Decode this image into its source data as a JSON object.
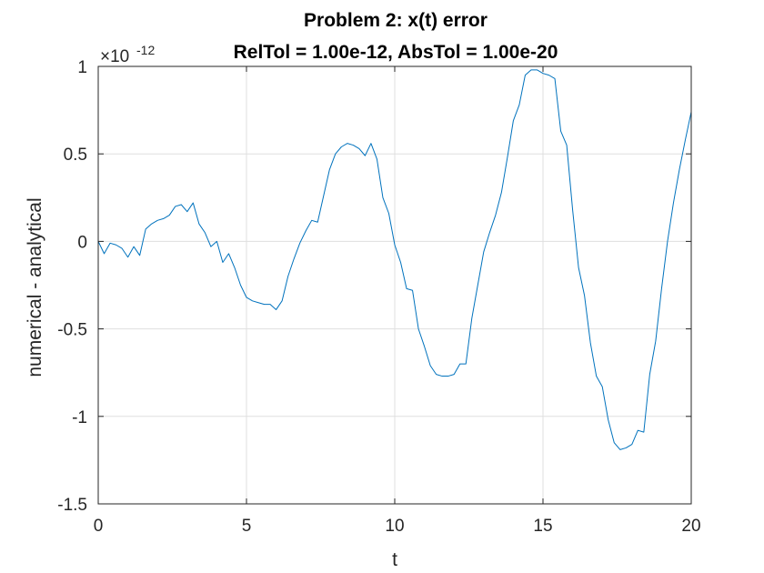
{
  "chart_data": {
    "type": "line",
    "title_line1": "Problem 2: x(t) error",
    "title_line2": "RelTol = 1.00e-12, AbsTol = 1.00e-20",
    "xlabel": "t",
    "ylabel": "numerical - analytical",
    "xlim": [
      0,
      20
    ],
    "ylim": [
      -1.5,
      1
    ],
    "xticks": [
      0,
      5,
      10,
      15,
      20
    ],
    "xtick_labels": [
      "0",
      "5",
      "10",
      "15",
      "20"
    ],
    "yticks": [
      -1.5,
      -1,
      -0.5,
      0,
      0.5,
      1
    ],
    "ytick_labels": [
      "-1.5",
      "-1",
      "-0.5",
      "0",
      "0.5",
      "1"
    ],
    "y_exponent_base": "×10",
    "y_exponent_power": "-12",
    "grid": true,
    "series": [
      {
        "name": "x(t) error",
        "color": "#0072bd",
        "x": [
          0,
          0.2,
          0.4,
          0.6,
          0.8,
          1.0,
          1.2,
          1.4,
          1.6,
          1.8,
          2.0,
          2.2,
          2.4,
          2.6,
          2.8,
          3.0,
          3.2,
          3.4,
          3.6,
          3.8,
          4.0,
          4.2,
          4.4,
          4.6,
          4.8,
          5.0,
          5.2,
          5.4,
          5.6,
          5.8,
          6.0,
          6.2,
          6.4,
          6.6,
          6.8,
          7.0,
          7.2,
          7.4,
          7.6,
          7.8,
          8.0,
          8.2,
          8.4,
          8.6,
          8.8,
          9.0,
          9.2,
          9.4,
          9.6,
          9.8,
          10.0,
          10.2,
          10.4,
          10.6,
          10.8,
          11.0,
          11.2,
          11.4,
          11.6,
          11.8,
          12.0,
          12.2,
          12.4,
          12.6,
          12.8,
          13.0,
          13.2,
          13.4,
          13.6,
          13.8,
          14.0,
          14.2,
          14.4,
          14.6,
          14.8,
          15.0,
          15.2,
          15.4,
          15.6,
          15.8,
          16.0,
          16.2,
          16.4,
          16.6,
          16.8,
          17.0,
          17.2,
          17.4,
          17.6,
          17.8,
          18.0,
          18.2,
          18.4,
          18.6,
          18.8,
          19.0,
          19.2,
          19.4,
          19.6,
          19.8,
          20.0
        ],
        "y": [
          0.0,
          -0.07,
          -0.01,
          -0.02,
          -0.04,
          -0.09,
          -0.03,
          -0.08,
          0.07,
          0.1,
          0.12,
          0.13,
          0.15,
          0.2,
          0.21,
          0.17,
          0.22,
          0.1,
          0.05,
          -0.03,
          0.0,
          -0.12,
          -0.07,
          -0.15,
          -0.25,
          -0.32,
          -0.34,
          -0.35,
          -0.36,
          -0.36,
          -0.39,
          -0.34,
          -0.2,
          -0.1,
          -0.01,
          0.06,
          0.12,
          0.11,
          0.26,
          0.41,
          0.5,
          0.54,
          0.56,
          0.55,
          0.53,
          0.49,
          0.56,
          0.47,
          0.25,
          0.16,
          -0.02,
          -0.12,
          -0.27,
          -0.28,
          -0.5,
          -0.6,
          -0.71,
          -0.76,
          -0.77,
          -0.77,
          -0.76,
          -0.7,
          -0.7,
          -0.44,
          -0.25,
          -0.06,
          0.05,
          0.15,
          0.28,
          0.48,
          0.69,
          0.78,
          0.95,
          0.98,
          0.98,
          0.96,
          0.95,
          0.93,
          0.63,
          0.55,
          0.18,
          -0.15,
          -0.31,
          -0.58,
          -0.77,
          -0.83,
          -1.02,
          -1.15,
          -1.19,
          -1.18,
          -1.16,
          -1.08,
          -1.09,
          -0.76,
          -0.57,
          -0.27,
          0.0,
          0.22,
          0.41,
          0.58,
          0.74
        ]
      }
    ]
  }
}
